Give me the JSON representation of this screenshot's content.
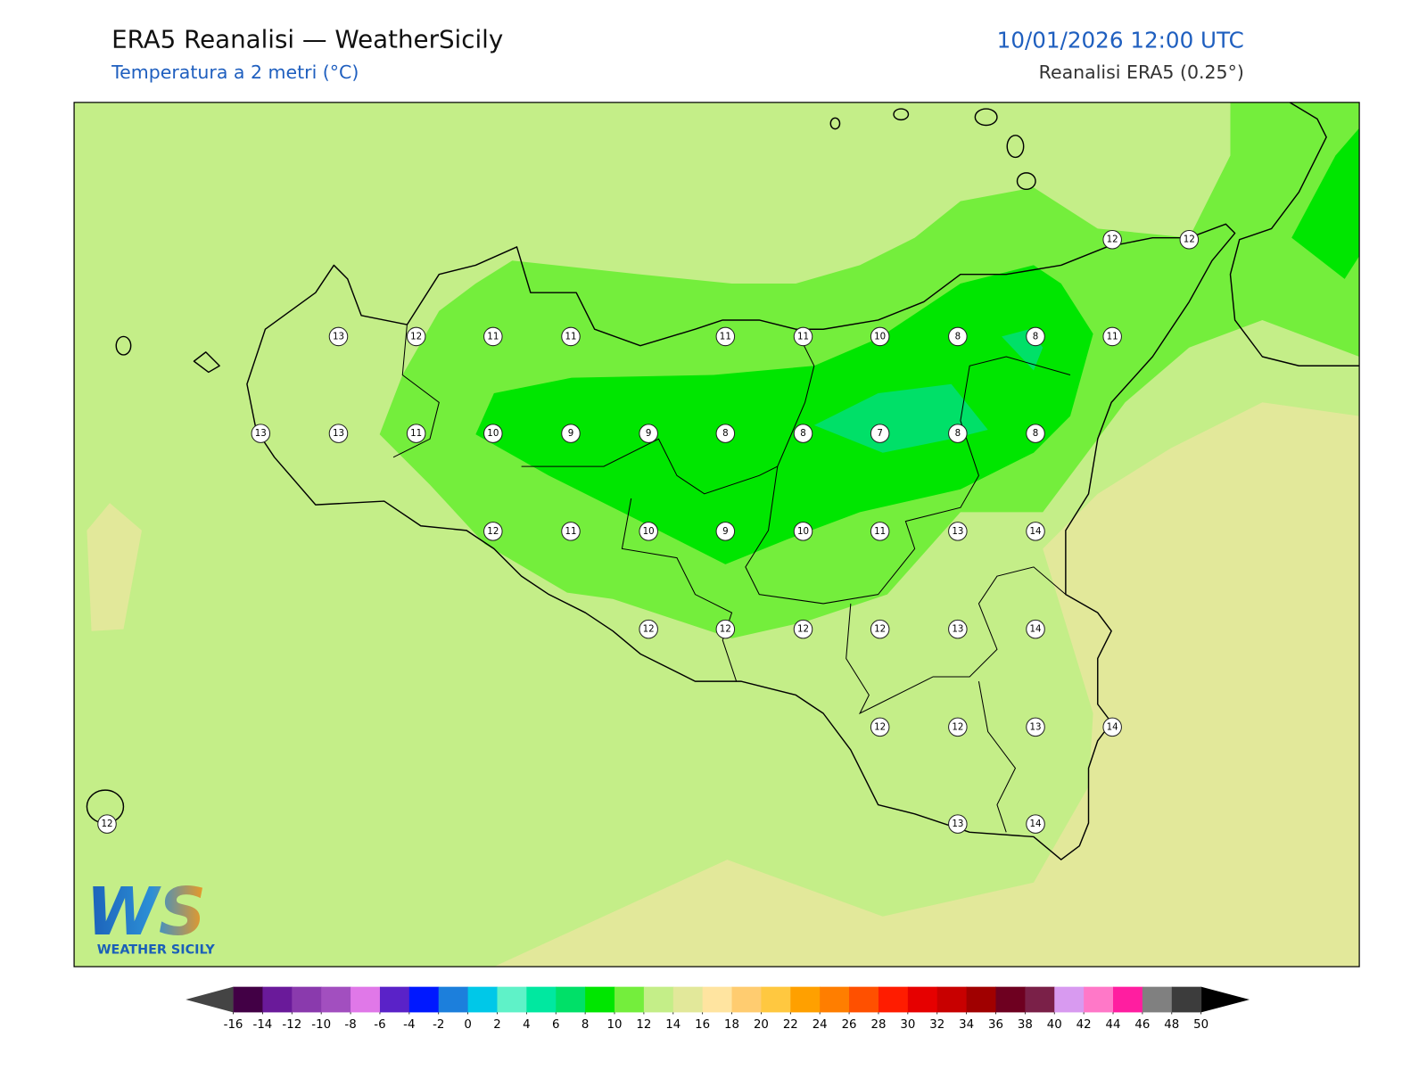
{
  "header": {
    "title": "ERA5 Reanalisi — WeatherSicily",
    "subtitle": "Temperatura a 2 metri (°C)",
    "datetime": "10/01/2026 12:00 UTC",
    "source": "Reanalisi ERA5 (0.25°)"
  },
  "stations": [
    12,
    12,
    13,
    12,
    11,
    11,
    11,
    11,
    10,
    8,
    8,
    11,
    13,
    13,
    11,
    10,
    9,
    9,
    8,
    8,
    7,
    8,
    8,
    12,
    11,
    10,
    9,
    10,
    11,
    13,
    14,
    12,
    12,
    12,
    12,
    13,
    14,
    12,
    12,
    13,
    14,
    12,
    13,
    14
  ],
  "colorbar": {
    "lim": [
      -16,
      50
    ],
    "ticks": [
      -16,
      -14,
      -12,
      -10,
      -8,
      -6,
      -4,
      -2,
      0,
      2,
      4,
      6,
      8,
      10,
      12,
      14,
      16,
      18,
      20,
      22,
      24,
      26,
      28,
      30,
      32,
      34,
      36,
      38,
      40,
      42,
      44,
      46,
      48,
      50
    ],
    "colors": [
      "#420045",
      "#6a1a9a",
      "#8a3aad",
      "#a24fbf",
      "#e078e8",
      "#5a22c8",
      "#0018ff",
      "#1c7fdc",
      "#00c8e8",
      "#5ff2c8",
      "#00e8a0",
      "#00e068",
      "#00e600",
      "#74ee3c",
      "#c4ee88",
      "#e2e89a",
      "#ffe4a0",
      "#ffcc70",
      "#ffc840",
      "#ffa000",
      "#ff7e00",
      "#ff5000",
      "#ff1c00",
      "#e60000",
      "#c80000",
      "#a00000",
      "#6e0020",
      "#7a2048",
      "#d89af0",
      "#ff78c8",
      "#ff1ea0",
      "#808080",
      "#3c3c3c"
    ],
    "under_color": "#444444",
    "over_color": "#000000"
  },
  "logo": {
    "mark": "WS",
    "text": "WEATHER SICILY"
  }
}
